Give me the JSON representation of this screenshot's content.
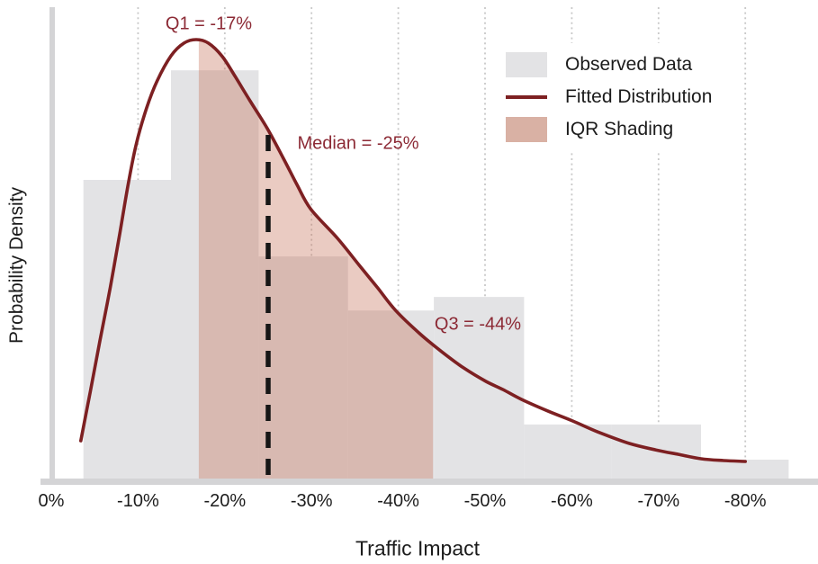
{
  "figure": {
    "kind": "statistical distribution plot (histogram + fitted density with IQR shading)"
  },
  "colors": {
    "histogram_bar": "#e3e3e5",
    "fitted_curve": "#7d2022",
    "iqr_fill_rgba": "rgba(198,112,86,0.36)",
    "legend_iqr_patch": "#d9b1a4",
    "annotation_text": "#8c2a35",
    "median_dash_line": "#161616",
    "axis_line": "#d4d4d6",
    "gridline": "#c8c8c8",
    "axis_text": "#1c1c1c",
    "background": "#ffffff"
  },
  "chart_data": {
    "type": "histogram_with_fitted_density_curve",
    "xlabel": "Traffic Impact",
    "ylabel": "Probability Density",
    "x_tick_labels": [
      "0%",
      "-10%",
      "-20%",
      "-30%",
      "-40%",
      "-50%",
      "-60%",
      "-70%",
      "-80%"
    ],
    "x_tick_values": [
      0,
      -10,
      -20,
      -30,
      -40,
      -50,
      -60,
      -70,
      -80
    ],
    "x_axis_note": "0% at left, losses increase rightward to -80%",
    "grid": "vertical dotted gridlines at every 10% tick",
    "legend": [
      "Observed Data",
      "Fitted Distribution",
      "IQR Shading"
    ],
    "legend_position": "upper right",
    "annotations": {
      "q1": "Q1 = -17%",
      "median": "Median = -25%",
      "q3": "Q3 = -44%"
    },
    "stats_pct": {
      "q1": -17,
      "median": -25,
      "q3": -44
    },
    "median_line": {
      "style": "dashed vertical black line",
      "x_pct": -25
    },
    "iqr_shading": {
      "from_pct": -17,
      "to_pct": -44,
      "description": "area under fitted curve between Q1 and Q3"
    },
    "histogram_bins": {
      "edges_pct": [
        -3.7,
        -13.8,
        -23.9,
        -34.2,
        -44.1,
        -54.5,
        -64.6,
        -74.9,
        -85.0
      ],
      "density_rel": [
        0.681,
        0.93,
        0.507,
        0.384,
        0.415,
        0.125,
        0.125,
        0.045
      ],
      "note": "density relative to fitted-curve peak = 1.0"
    },
    "fitted_curve_rel": [
      [
        -3.4,
        0.088
      ],
      [
        -4.5,
        0.2
      ],
      [
        -5.6,
        0.315
      ],
      [
        -6.8,
        0.437
      ],
      [
        -7.9,
        0.56
      ],
      [
        -8.9,
        0.675
      ],
      [
        -9.8,
        0.763
      ],
      [
        -11.0,
        0.845
      ],
      [
        -12.2,
        0.906
      ],
      [
        -13.8,
        0.963
      ],
      [
        -15.3,
        0.992
      ],
      [
        -16.7,
        1.0
      ],
      [
        -18.1,
        0.992
      ],
      [
        -19.7,
        0.962
      ],
      [
        -21.2,
        0.916
      ],
      [
        -22.9,
        0.861
      ],
      [
        -24.9,
        0.798
      ],
      [
        -26.7,
        0.732
      ],
      [
        -28.3,
        0.671
      ],
      [
        -29.9,
        0.615
      ],
      [
        -33.0,
        0.548
      ],
      [
        -35.5,
        0.487
      ],
      [
        -37.6,
        0.436
      ],
      [
        -39.7,
        0.384
      ],
      [
        -42.5,
        0.331
      ],
      [
        -44.9,
        0.292
      ],
      [
        -47.5,
        0.254
      ],
      [
        -50.1,
        0.223
      ],
      [
        -52.1,
        0.204
      ],
      [
        -54.2,
        0.182
      ],
      [
        -57.3,
        0.155
      ],
      [
        -60.1,
        0.133
      ],
      [
        -63.0,
        0.108
      ],
      [
        -66.6,
        0.082
      ],
      [
        -69.7,
        0.067
      ],
      [
        -72.3,
        0.057
      ],
      [
        -74.9,
        0.047
      ],
      [
        -77.5,
        0.043
      ],
      [
        -80.0,
        0.041
      ]
    ]
  }
}
